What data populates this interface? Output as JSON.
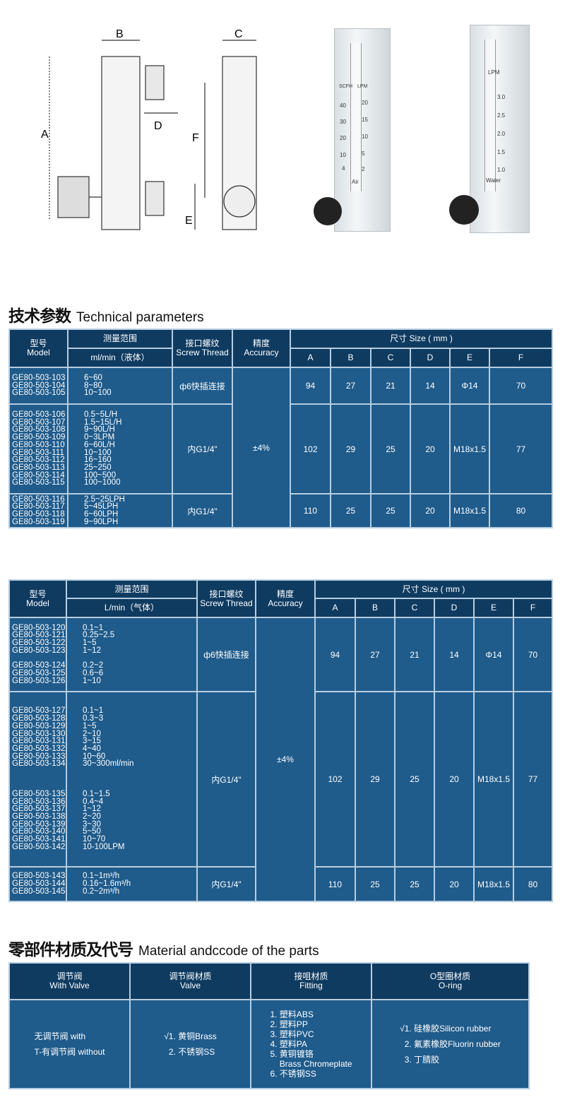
{
  "diagram": {
    "labels": [
      "A",
      "B",
      "C",
      "D",
      "E",
      "F"
    ]
  },
  "photos": [
    {
      "scale_labels": [
        "SCFH",
        "LPM"
      ],
      "left_ticks": [
        "40",
        "30",
        "20",
        "10",
        "4"
      ],
      "right_ticks": [
        "20",
        "15",
        "10",
        "5",
        "2"
      ],
      "medium": "Air"
    },
    {
      "scale_labels": [
        "LPM"
      ],
      "left_ticks": [],
      "right_ticks": [
        "3.0",
        "2.5",
        "2.0",
        "1.5",
        "1.0"
      ],
      "medium": "Water"
    }
  ],
  "tech_title": {
    "cn": "技术参数",
    "en": "Technical parameters"
  },
  "parts_title": {
    "cn": "零部件材质及代号",
    "en": "Material andccode of the parts"
  },
  "colors": {
    "header": "#0f3b61",
    "body": "#1f5b8b",
    "border": "#b7cde0"
  },
  "table1": {
    "header": {
      "model_cn": "型号",
      "model_en": "Model",
      "range_cn": "测量范围",
      "range_unit": "ml/min（液体）",
      "thread_cn": "接口螺纹",
      "thread_en": "Screw Thread",
      "accuracy_cn": "精度",
      "accuracy_en": "Accuracy",
      "size": "尺寸 Size ( mm )",
      "dims": [
        "A",
        "B",
        "C",
        "D",
        "E",
        "F"
      ]
    },
    "accuracy": "±4%",
    "groups": [
      {
        "models": [
          "GE80-503-103",
          "GE80-503-104",
          "GE80-503-105"
        ],
        "ranges": [
          "6~60",
          "8~80",
          "10~100"
        ],
        "thread": "ф6快插连接",
        "dims": [
          "94",
          "27",
          "21",
          "14",
          "Φ14",
          "70"
        ]
      },
      {
        "models": [
          "GE80-503-106",
          "GE80-503-107",
          "GE80-503-108",
          "GE80-503-109",
          "GE80-503-110",
          "GE80-503-111",
          "GE80-503-112",
          "GE80-503-113",
          "GE80-503-114",
          "GE80-503-115"
        ],
        "ranges": [
          "0.5~5L/H",
          "1.5~15L/H",
          "9~90L/H",
          "0~3LPM",
          "6~60L/H",
          "10~100",
          "16~160",
          "25~250",
          "100~500",
          "100~1000"
        ],
        "thread": "内G1/4\"",
        "dims": [
          "102",
          "29",
          "25",
          "20",
          "M18x1.5",
          "77"
        ]
      },
      {
        "models": [
          "GE80-503-116",
          "GE80-503-117",
          "GE80-503-118",
          "GE80-503-119"
        ],
        "ranges": [
          "2.5~25LPH",
          "5~45LPH",
          "6~60LPH",
          "9~90LPH"
        ],
        "thread": "内G1/4\"",
        "dims": [
          "110",
          "25",
          "25",
          "20",
          "M18x1.5",
          "80"
        ]
      }
    ]
  },
  "table2": {
    "header": {
      "model_cn": "型号",
      "model_en": "Model",
      "range_cn": "测量范围",
      "range_unit": "L/min（气体）",
      "thread_cn": "接口螺纹",
      "thread_en": "Screw Thread",
      "accuracy_cn": "精度",
      "accuracy_en": "Accuracy",
      "size": "尺寸 Size ( mm )",
      "dims": [
        "A",
        "B",
        "C",
        "D",
        "E",
        "F"
      ]
    },
    "accuracy": "±4%",
    "groups": [
      {
        "models": [
          "GE80-503-120",
          "GE80-503-121",
          "GE80-503-122",
          "GE80-503-123",
          "",
          "GE80-503-124",
          "GE80-503-125",
          "GE80-503-126"
        ],
        "ranges": [
          "0.1~1",
          "0.25~2.5",
          "1~5",
          "1~12",
          "",
          "0.2~2",
          "0.6~6",
          "1~10"
        ],
        "thread": "ф6快插连接",
        "dims": [
          "94",
          "27",
          "21",
          "14",
          "Φ14",
          "70"
        ]
      },
      {
        "models": [
          "GE80-503-127",
          "GE80-503-128",
          "GE80-503-129",
          "GE80-503-130",
          "GE80-503-131",
          "GE80-503-132",
          "GE80-503-133",
          "GE80-503-134",
          "",
          "",
          "",
          "GE80-503-135",
          "GE80-503-136",
          "GE80-503-137",
          "GE80-503-138",
          "GE80-503-139",
          "GE80-503-140",
          "GE80-503-141",
          "GE80-503-142"
        ],
        "ranges": [
          "0.1~1",
          "0.3~3",
          "1~5",
          "2~10",
          "3~15",
          "4~40",
          "10~60",
          "30~300ml/min",
          "",
          "",
          "",
          "0.1~1.5",
          "0.4~4",
          "1~12",
          "2~20",
          "3~30",
          "5~50",
          "10~70",
          "10-100LPM"
        ],
        "thread": "内G1/4\"",
        "dims": [
          "102",
          "29",
          "25",
          "20",
          "M18x1.5",
          "77"
        ]
      },
      {
        "models": [
          "GE80-503-143",
          "GE80-503-144",
          "GE80-503-145"
        ],
        "ranges": [
          "0.1~1m³/h",
          "0.16~1.6m³/h",
          "0.2~2m³/h"
        ],
        "thread": "内G1/4\"",
        "dims": [
          "110",
          "25",
          "25",
          "20",
          "M18x1.5",
          "80"
        ]
      }
    ]
  },
  "table3": {
    "headers": [
      {
        "cn": "调节阀",
        "en": "With Valve"
      },
      {
        "cn": "调节阀材质",
        "en": "Valve"
      },
      {
        "cn": "接咀材质",
        "en": "Fitting"
      },
      {
        "cn": "O型圈材质",
        "en": "O-ring"
      }
    ],
    "columns": [
      [
        "无调节阀 with",
        "T-有调节阀 without"
      ],
      [
        "√1. 黄铜Brass",
        "  2. 不锈钢SS"
      ],
      [
        "1. 塑料ABS",
        "2. 塑料PP",
        "3. 塑料PVC",
        "4. 塑料PA",
        "5. 黄铜镀铬",
        "    Brass Chromeplate",
        "6. 不锈钢SS"
      ],
      [
        "√1. 硅橡胶Silicon rubber",
        "  2. 氟素橡胶Fluorin rubber",
        "  3. 丁腈胶"
      ]
    ]
  }
}
